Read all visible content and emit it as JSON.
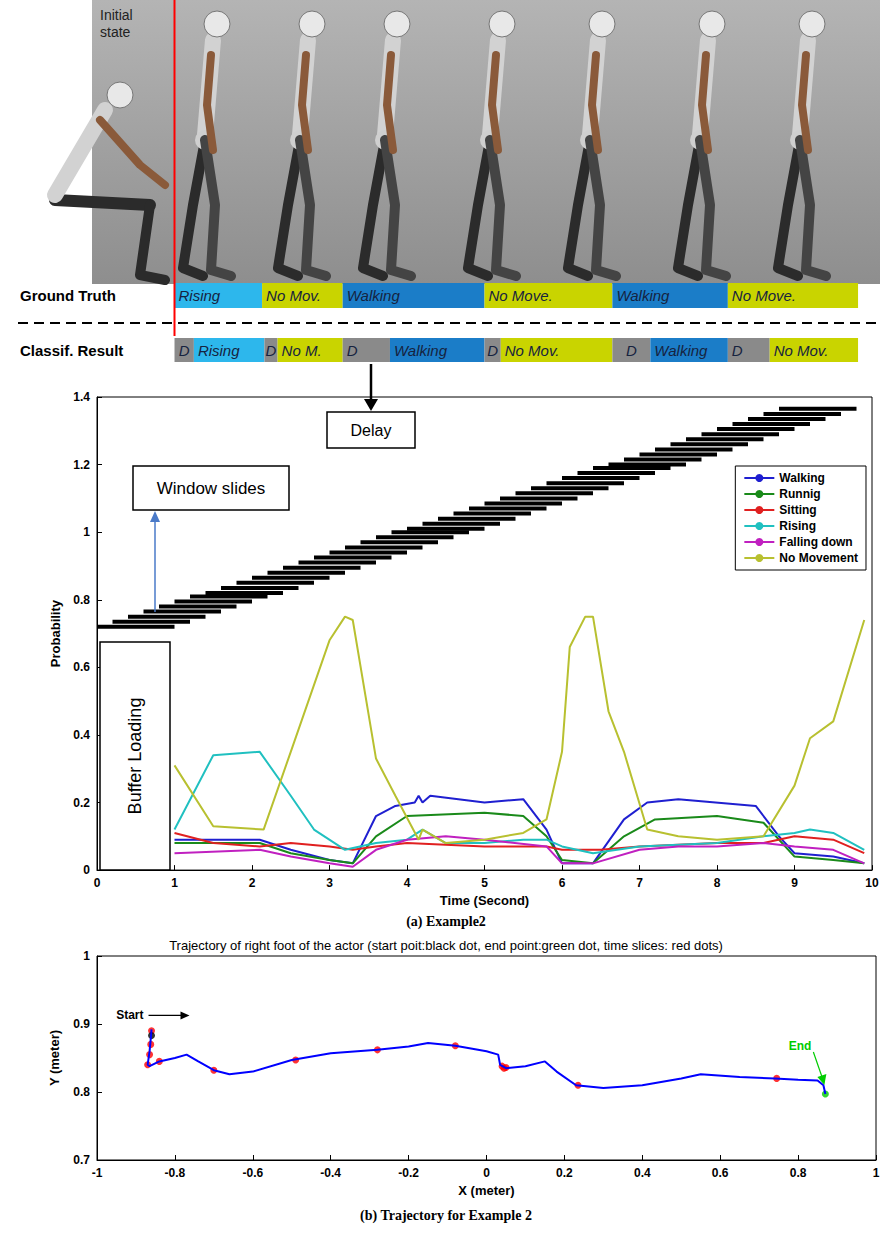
{
  "figure": {
    "image_label": "Initial state",
    "rows": [
      {
        "label": "Ground Truth",
        "segments": [
          {
            "text": "Rising",
            "start": 1,
            "end": 2.13,
            "color": "#2db7ec"
          },
          {
            "text": "No Mov.",
            "start": 2.13,
            "end": 3.17,
            "color": "#c9d400"
          },
          {
            "text": "Walking",
            "start": 3.17,
            "end": 5.0,
            "color": "#1b7dc8"
          },
          {
            "text": "No Move.",
            "start": 5.0,
            "end": 6.65,
            "color": "#c9d400"
          },
          {
            "text": "Walking",
            "start": 6.65,
            "end": 8.14,
            "color": "#1b7dc8"
          },
          {
            "text": "No Move.",
            "start": 8.14,
            "end": 9.82,
            "color": "#c9d400"
          }
        ]
      },
      {
        "label": "Classif. Result",
        "segments": [
          {
            "text": "D",
            "start": 1,
            "end": 1.25,
            "color": "#8a8a8a"
          },
          {
            "text": "Rising",
            "start": 1.25,
            "end": 2.16,
            "color": "#2db7ec"
          },
          {
            "text": "D",
            "start": 2.16,
            "end": 2.33,
            "color": "#8a8a8a"
          },
          {
            "text": "No M.",
            "start": 2.33,
            "end": 3.17,
            "color": "#c9d400"
          },
          {
            "text": "D",
            "start": 3.17,
            "end": 3.78,
            "color": "#8a8a8a"
          },
          {
            "text": "Walking",
            "start": 3.78,
            "end": 5.0,
            "color": "#1b7dc8"
          },
          {
            "text": "D",
            "start": 5.0,
            "end": 5.21,
            "color": "#8a8a8a"
          },
          {
            "text": "No Mov.",
            "start": 5.21,
            "end": 6.65,
            "color": "#c9d400"
          },
          {
            "text": "D",
            "start": 6.65,
            "end": 7.14,
            "color": "#8a8a8a"
          },
          {
            "text": "Walking",
            "start": 7.14,
            "end": 8.14,
            "color": "#1b7dc8"
          },
          {
            "text": "D",
            "start": 8.14,
            "end": 8.68,
            "color": "#8a8a8a"
          },
          {
            "text": "No Mov.",
            "start": 8.68,
            "end": 9.82,
            "color": "#c9d400"
          }
        ]
      }
    ]
  },
  "chart_data": [
    {
      "type": "line",
      "xlabel": "Time (Second)",
      "ylabel": "Probability",
      "xlim": [
        0,
        10
      ],
      "xticks": [
        0,
        1,
        2,
        3,
        4,
        5,
        6,
        7,
        8,
        9,
        10
      ],
      "ylim": [
        0,
        1.4
      ],
      "yticks": [
        0,
        0.2,
        0.4,
        0.6,
        0.8,
        1,
        1.2,
        1.4
      ],
      "grid": false,
      "legend": "upper right",
      "series": [
        {
          "name": "Walking",
          "color": "#1f1fd0",
          "x": [
            1,
            2.1,
            2.5,
            3.0,
            3.3,
            3.6,
            3.85,
            4.1,
            4.15,
            4.2,
            4.3,
            5.0,
            5.5,
            5.8,
            6.0,
            6.4,
            6.8,
            7.1,
            7.5,
            8.5,
            8.8,
            9.0,
            9.5,
            9.9
          ],
          "values": [
            0.09,
            0.09,
            0.06,
            0.03,
            0.02,
            0.16,
            0.19,
            0.2,
            0.22,
            0.2,
            0.22,
            0.2,
            0.21,
            0.12,
            0.02,
            0.02,
            0.15,
            0.2,
            0.21,
            0.19,
            0.1,
            0.05,
            0.04,
            0.02
          ]
        },
        {
          "name": "Runnig",
          "color": "#1a8a1a",
          "x": [
            1,
            2.1,
            2.5,
            3.0,
            3.3,
            3.6,
            4.0,
            5.0,
            5.5,
            5.8,
            6.0,
            6.4,
            6.8,
            7.2,
            8.0,
            8.6,
            9.0,
            9.5,
            9.9
          ],
          "values": [
            0.08,
            0.08,
            0.05,
            0.03,
            0.02,
            0.1,
            0.16,
            0.17,
            0.16,
            0.1,
            0.03,
            0.02,
            0.1,
            0.15,
            0.16,
            0.14,
            0.04,
            0.03,
            0.02
          ]
        },
        {
          "name": "Sitting",
          "color": "#e02020",
          "x": [
            1,
            1.5,
            2.1,
            2.5,
            3.0,
            3.3,
            3.6,
            4.0,
            5.0,
            5.8,
            6.0,
            6.5,
            7.0,
            8.0,
            8.6,
            9.0,
            9.5,
            9.9
          ],
          "values": [
            0.11,
            0.08,
            0.07,
            0.08,
            0.07,
            0.06,
            0.07,
            0.08,
            0.07,
            0.07,
            0.06,
            0.06,
            0.07,
            0.08,
            0.08,
            0.1,
            0.09,
            0.05
          ]
        },
        {
          "name": "Rising",
          "color": "#20c0c0",
          "x": [
            1,
            1.5,
            2.1,
            2.5,
            2.8,
            3.2,
            3.6,
            4.0,
            4.2,
            4.5,
            5.0,
            5.5,
            5.8,
            6.0,
            6.4,
            7.0,
            8.0,
            8.6,
            9.0,
            9.2,
            9.5,
            9.9
          ],
          "values": [
            0.12,
            0.34,
            0.35,
            0.22,
            0.12,
            0.06,
            0.08,
            0.09,
            0.12,
            0.08,
            0.08,
            0.09,
            0.09,
            0.07,
            0.05,
            0.07,
            0.08,
            0.1,
            0.11,
            0.12,
            0.11,
            0.06
          ]
        },
        {
          "name": "Falling down",
          "color": "#c020c0",
          "x": [
            1,
            2.1,
            2.5,
            3.0,
            3.3,
            3.6,
            4.0,
            4.5,
            5.0,
            5.8,
            6.0,
            6.4,
            7.0,
            7.5,
            8.0,
            8.6,
            9.0,
            9.5,
            9.9
          ],
          "values": [
            0.05,
            0.06,
            0.04,
            0.02,
            0.01,
            0.06,
            0.09,
            0.1,
            0.09,
            0.07,
            0.02,
            0.02,
            0.06,
            0.07,
            0.07,
            0.08,
            0.07,
            0.06,
            0.02
          ]
        },
        {
          "name": "No Movement",
          "color": "#b8c030",
          "x": [
            1,
            1.5,
            2.15,
            2.5,
            3.0,
            3.2,
            3.3,
            3.6,
            3.85,
            4.15,
            4.2,
            4.5,
            5.0,
            5.5,
            5.8,
            6.0,
            6.1,
            6.3,
            6.4,
            6.6,
            6.8,
            7.1,
            7.5,
            8.0,
            8.6,
            9.0,
            9.2,
            9.5,
            9.9
          ],
          "values": [
            0.31,
            0.13,
            0.12,
            0.35,
            0.68,
            0.75,
            0.74,
            0.33,
            0.22,
            0.09,
            0.12,
            0.08,
            0.09,
            0.11,
            0.15,
            0.35,
            0.66,
            0.75,
            0.75,
            0.47,
            0.35,
            0.12,
            0.1,
            0.09,
            0.1,
            0.25,
            0.39,
            0.44,
            0.74
          ]
        }
      ],
      "windows": {
        "start": [
          0,
          0.2,
          0.4,
          0.6,
          0.8,
          1.0,
          1.2,
          1.4,
          1.6,
          1.8,
          2.0,
          2.2,
          2.4,
          2.6,
          2.8,
          3.0,
          3.2,
          3.4,
          3.6,
          3.8,
          4.0,
          4.2,
          4.4,
          4.6,
          4.8,
          5.0,
          5.2,
          5.4,
          5.6,
          5.8,
          6.0,
          6.2,
          6.4,
          6.6,
          6.8,
          7.0,
          7.2,
          7.4,
          7.6,
          7.8,
          8.0,
          8.2,
          8.4,
          8.6,
          8.8
        ],
        "end": [
          1,
          1.2,
          1.4,
          1.6,
          1.8,
          2.0,
          2.2,
          2.4,
          2.6,
          2.8,
          3.0,
          3.2,
          3.4,
          3.6,
          3.8,
          4.0,
          4.2,
          4.4,
          4.6,
          4.8,
          5.0,
          5.2,
          5.4,
          5.6,
          5.8,
          6.0,
          6.2,
          6.4,
          6.6,
          6.8,
          7.0,
          7.2,
          7.4,
          7.6,
          7.8,
          8.0,
          8.2,
          8.4,
          8.6,
          8.8,
          9.0,
          9.2,
          9.4,
          9.6,
          9.8
        ],
        "y": [
          0.72,
          0.735,
          0.75,
          0.765,
          0.78,
          0.795,
          0.81,
          0.82,
          0.835,
          0.85,
          0.865,
          0.88,
          0.895,
          0.91,
          0.925,
          0.94,
          0.955,
          0.97,
          0.985,
          1.0,
          1.01,
          1.025,
          1.04,
          1.055,
          1.07,
          1.085,
          1.1,
          1.115,
          1.13,
          1.145,
          1.16,
          1.175,
          1.19,
          1.2,
          1.215,
          1.23,
          1.245,
          1.26,
          1.275,
          1.29,
          1.305,
          1.32,
          1.335,
          1.35,
          1.365
        ]
      },
      "annotations": [
        "Window slides",
        "Delay",
        "Buffer Loading"
      ],
      "caption": "(a) Example2"
    },
    {
      "type": "line",
      "title": "Trajectory of right foot of the actor (start poit:black dot, end point:green dot, time slices: red dots)",
      "xlabel": "X (meter)",
      "ylabel": "Y (meter)",
      "xlim": [
        -1,
        1
      ],
      "xticks": [
        -1,
        -0.8,
        -0.6,
        -0.4,
        -0.2,
        0,
        0.2,
        0.4,
        0.6,
        0.8,
        1
      ],
      "ylim": [
        0.7,
        1
      ],
      "yticks": [
        0.7,
        0.8,
        0.9,
        1
      ],
      "grid": false,
      "series": [
        {
          "type": "line",
          "color": "#0000ff",
          "x": [
            -0.86,
            -0.862,
            -0.865,
            -0.87,
            -0.865,
            -0.84,
            -0.8,
            -0.77,
            -0.74,
            -0.7,
            -0.66,
            -0.6,
            -0.5,
            -0.4,
            -0.28,
            -0.2,
            -0.15,
            -0.08,
            0.0,
            0.03,
            0.035,
            0.05,
            0.1,
            0.15,
            0.18,
            0.23,
            0.3,
            0.4,
            0.5,
            0.55,
            0.65,
            0.74,
            0.8,
            0.85,
            0.865,
            0.87
          ],
          "values": [
            0.892,
            0.878,
            0.86,
            0.84,
            0.838,
            0.845,
            0.85,
            0.855,
            0.845,
            0.832,
            0.826,
            0.83,
            0.847,
            0.857,
            0.862,
            0.867,
            0.872,
            0.868,
            0.86,
            0.855,
            0.84,
            0.835,
            0.838,
            0.845,
            0.83,
            0.81,
            0.806,
            0.81,
            0.82,
            0.826,
            0.822,
            0.82,
            0.818,
            0.817,
            0.81,
            0.797
          ]
        },
        {
          "type": "scatter",
          "color": "#ff0000",
          "x": [
            -0.86,
            -0.862,
            -0.865,
            -0.87,
            -0.84,
            -0.7,
            -0.49,
            -0.28,
            -0.08,
            0.04,
            0.045,
            0.05,
            0.235,
            0.745
          ],
          "values": [
            0.89,
            0.87,
            0.855,
            0.84,
            0.845,
            0.832,
            0.847,
            0.862,
            0.868,
            0.838,
            0.835,
            0.836,
            0.81,
            0.82
          ]
        },
        {
          "type": "scatter",
          "color": "#000000",
          "x": [
            -0.86
          ],
          "values": [
            0.883
          ]
        },
        {
          "type": "scatter",
          "color": "#00cc00",
          "x": [
            0.87
          ],
          "values": [
            0.797
          ]
        }
      ],
      "annotations": [
        {
          "text": "Start",
          "color": "#000000"
        },
        {
          "text": "End",
          "color": "#00cc00"
        }
      ],
      "caption": "(b) Trajectory for Example 2"
    }
  ]
}
